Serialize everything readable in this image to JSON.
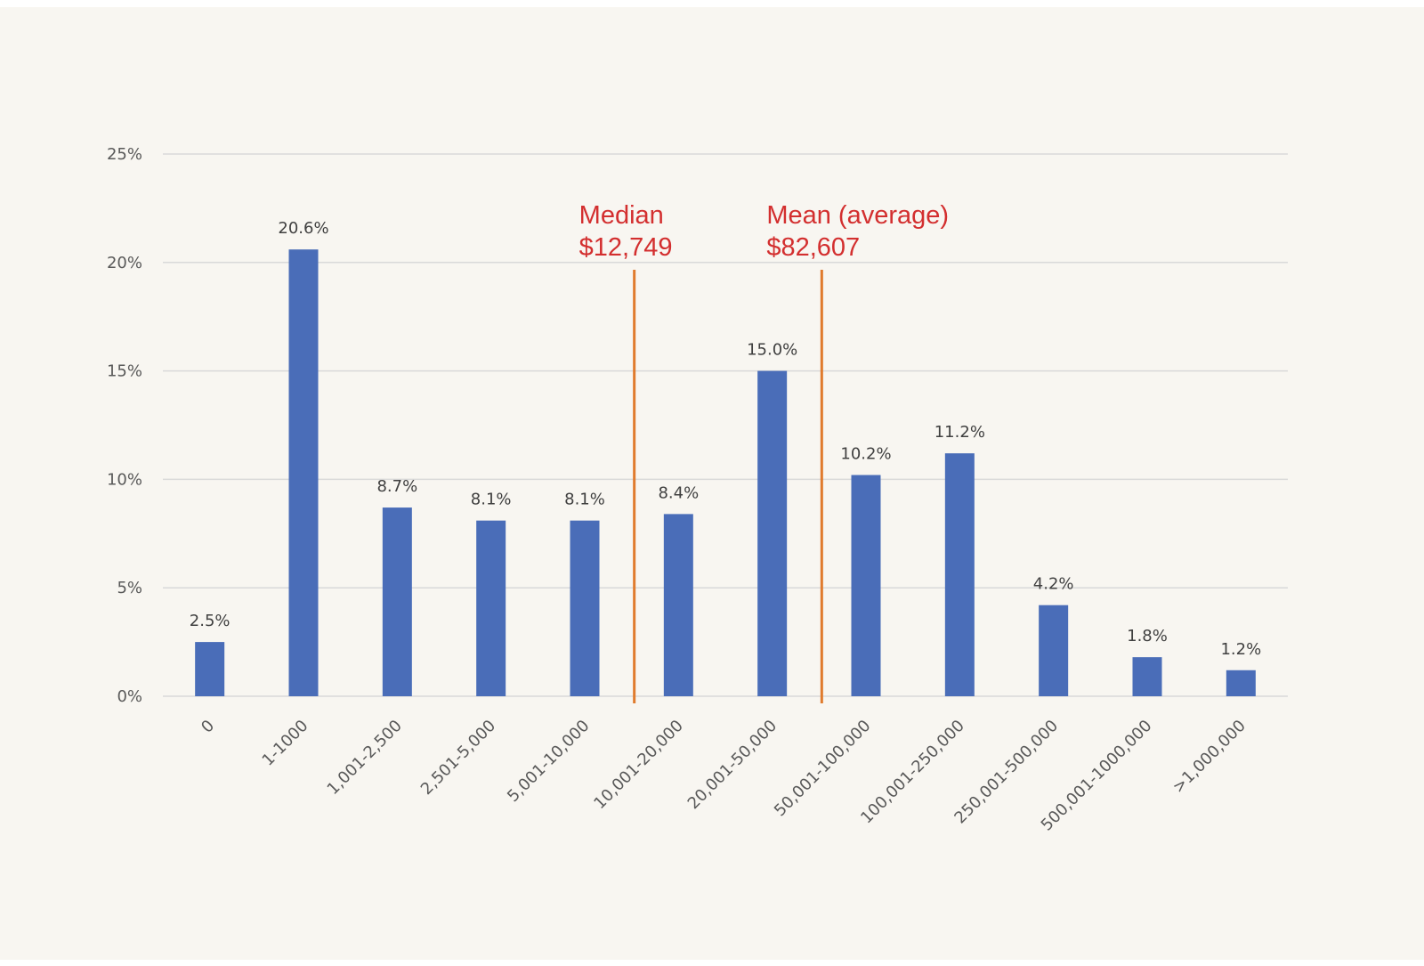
{
  "chart_data": {
    "type": "bar",
    "categories": [
      "0",
      "1-1000",
      "1,001-2,500",
      "2,501-5,000",
      "5,001-10,000",
      "10,001-20,000",
      "20,001-50,000",
      "50,001-100,000",
      "100,001-250,000",
      "250,001-500,000",
      "500,001-1000,000",
      ">1,000,000"
    ],
    "values": [
      2.5,
      20.6,
      8.7,
      8.1,
      8.1,
      8.4,
      15.0,
      10.2,
      11.2,
      4.2,
      1.8,
      1.2
    ],
    "data_labels": [
      "2.5%",
      "20.6%",
      "8.7%",
      "8.1%",
      "8.1%",
      "8.4%",
      "15.0%",
      "10.2%",
      "11.2%",
      "4.2%",
      "1.8%",
      "1.2%"
    ],
    "ylim": [
      0,
      25
    ],
    "yticks": [
      0,
      5,
      10,
      15,
      20,
      25
    ],
    "ytick_labels": [
      "0%",
      "5%",
      "10%",
      "15%",
      "20%",
      "25%"
    ],
    "grid": true,
    "legend": "none",
    "colors": {
      "bar": "#4a6db8",
      "gridline": "#d9d9d9",
      "reference_line": "#e07b2e",
      "annotation": "#d32f2f",
      "background": "#f8f6f1"
    },
    "annotations": [
      {
        "label": "Median",
        "value_label": "$12,749",
        "between_categories": [
          4,
          5
        ]
      },
      {
        "label": "Mean (average)",
        "value_label": "$82,607",
        "between_categories": [
          6,
          7
        ]
      }
    ]
  }
}
